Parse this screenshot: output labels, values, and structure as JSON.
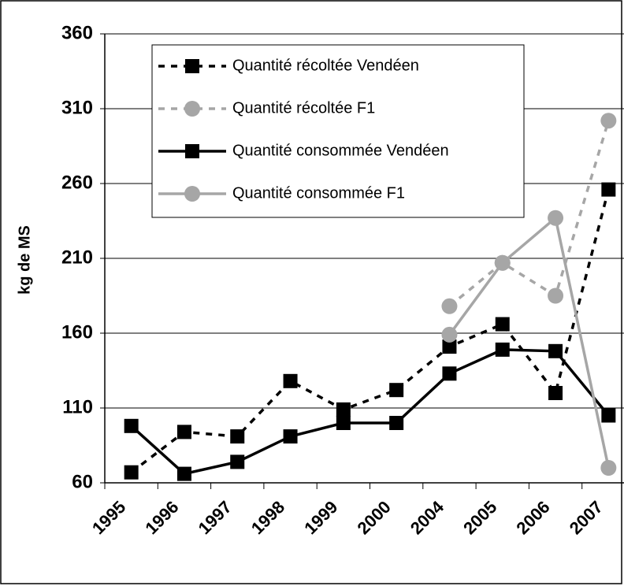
{
  "chart_data": {
    "type": "line",
    "y_label": "kg de MS",
    "categories": [
      "1995",
      "1996",
      "1997",
      "1998",
      "1999",
      "2000",
      "2004",
      "2005",
      "2006",
      "2007"
    ],
    "series": [
      {
        "name": "Quantité récoltée Vendéen",
        "color": "#000000",
        "dash": true,
        "marker": "square",
        "values": [
          67,
          94,
          91,
          128,
          109,
          122,
          151,
          166,
          120,
          256
        ]
      },
      {
        "name": "Quantité récoltée F1",
        "color": "#a6a6a6",
        "dash": true,
        "marker": "circle",
        "values": [
          null,
          null,
          null,
          null,
          null,
          null,
          178,
          207,
          185,
          302
        ]
      },
      {
        "name": "Quantité consommée Vendéen",
        "color": "#000000",
        "dash": false,
        "marker": "square",
        "values": [
          98,
          66,
          74,
          91,
          100,
          100,
          133,
          149,
          148,
          105
        ]
      },
      {
        "name": "Quantité consommée F1",
        "color": "#a6a6a6",
        "dash": false,
        "marker": "circle",
        "values": [
          null,
          null,
          null,
          null,
          null,
          null,
          159,
          207,
          237,
          70
        ]
      }
    ],
    "ylim": [
      60,
      360
    ],
    "yticks": [
      60,
      110,
      160,
      210,
      260,
      310,
      360
    ],
    "grid": true,
    "legend": "upper left"
  }
}
